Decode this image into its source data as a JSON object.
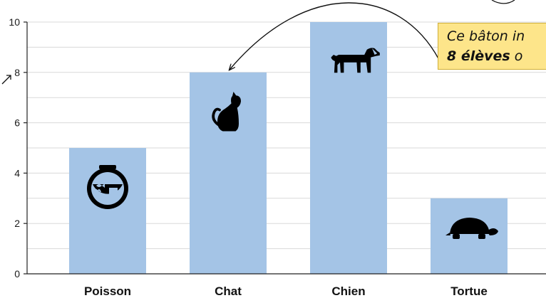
{
  "chart_data": {
    "type": "bar",
    "categories": [
      "Poisson",
      "Chat",
      "Chien",
      "Tortue"
    ],
    "values": [
      5,
      8,
      10,
      3
    ],
    "ylim": [
      0,
      10
    ],
    "yticks": [
      0,
      2,
      4,
      6,
      8,
      10
    ],
    "grid": "horizontal",
    "bar_color": "#a4c4e6",
    "bar_icons": [
      "fishbowl-icon",
      "cat-icon",
      "dog-icon",
      "turtle-icon"
    ],
    "annotation": {
      "line1": "Ce bâton in",
      "line2_bold": "8 élèves",
      "line2_rest": " o",
      "points_to": "Chat",
      "background": "#fde58a"
    }
  }
}
